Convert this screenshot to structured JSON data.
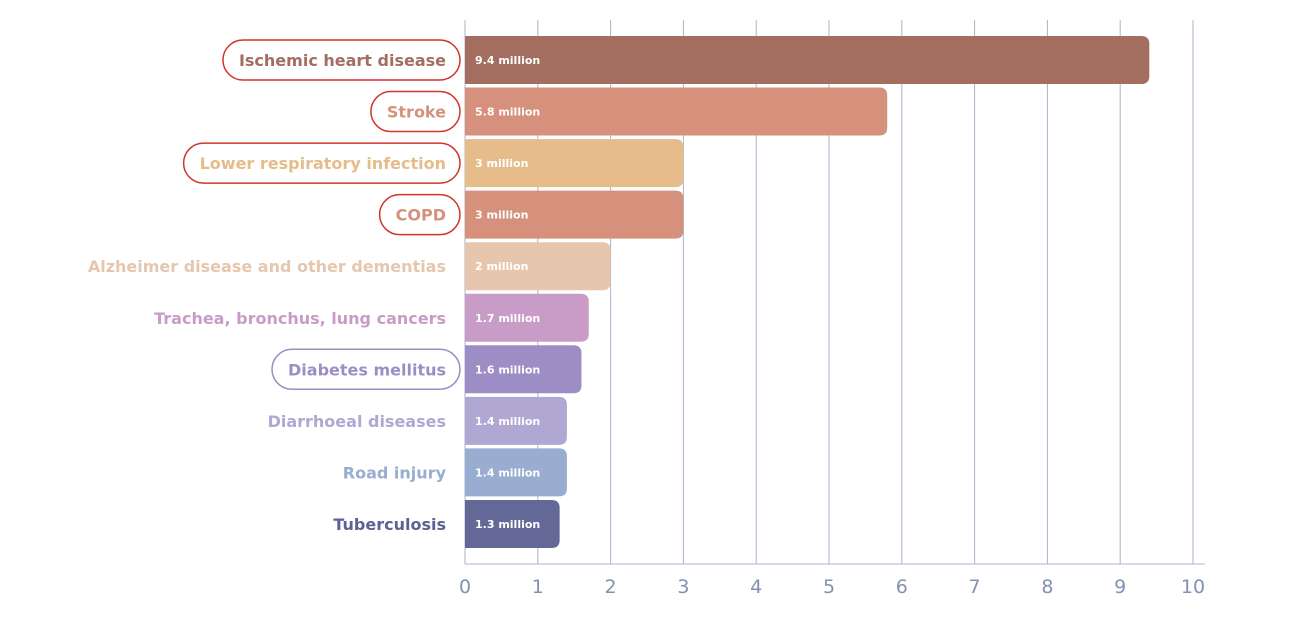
{
  "chart_data": {
    "type": "bar",
    "orientation": "horizontal",
    "categories": [
      "Ischemic heart disease",
      "Stroke",
      "Lower respiratory infection",
      "COPD",
      "Alzheimer disease and other dementias",
      "Trachea, bronchus, lung cancers",
      "Diabetes mellitus",
      "Diarrhoeal diseases",
      "Road injury",
      "Tuberculosis"
    ],
    "values": [
      9.4,
      5.8,
      3,
      3,
      2,
      1.7,
      1.6,
      1.4,
      1.4,
      1.3
    ],
    "data_labels": [
      "9.4 million",
      "5.8 million",
      "3 million",
      "3 million",
      "2 million",
      "1.7 million",
      "1.6 million",
      "1.4 million",
      "1.4 million",
      "1.3 million"
    ],
    "bar_colors": [
      "#a36e60",
      "#d6917c",
      "#e5bc8a",
      "#d6917c",
      "#e6c6ac",
      "#c89cc7",
      "#9c8ec4",
      "#b0a7d2",
      "#98adcf",
      "#636896"
    ],
    "label_colors": [
      "#a36e60",
      "#d6917c",
      "#e5bc8a",
      "#d6917c",
      "#e6c6ac",
      "#c89cc7",
      "#9c8ec4",
      "#b0a7d2",
      "#98adcf",
      "#5c6294"
    ],
    "outlined_labels": [
      true,
      true,
      true,
      true,
      false,
      false,
      true,
      false,
      false,
      false
    ],
    "outline_colors": [
      "#d0342c",
      "#d0342c",
      "#d0342c",
      "#d0342c",
      null,
      null,
      "#9c8ec4",
      null,
      null,
      null
    ],
    "xticks": [
      0,
      1,
      2,
      3,
      4,
      5,
      6,
      7,
      8,
      9,
      10
    ],
    "xlim": [
      0,
      10
    ],
    "grid": "vertical",
    "title": "",
    "xlabel": "",
    "ylabel": "",
    "grid_color": "#aab4cc",
    "tick_color": "#8391b3"
  }
}
